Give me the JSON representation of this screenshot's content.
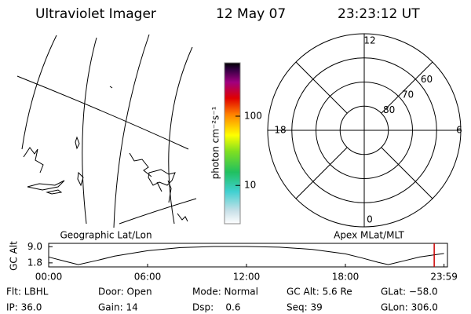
{
  "header": {
    "title": "Ultraviolet Imager",
    "date": "12 May 07",
    "time": "23:23:12 UT"
  },
  "chart_data": [
    {
      "type": "map",
      "title": "Geographic Lat/Lon"
    },
    {
      "type": "colorbar",
      "label": "photon cm⁻²s⁻¹",
      "ylim": [
        2.8,
        590
      ],
      "yticks": [
        10,
        100
      ],
      "log_scale": true
    },
    {
      "type": "polar",
      "title": "Apex MLat/MLT",
      "rlim": [
        90,
        50
      ],
      "rticks": [
        80,
        70,
        60
      ],
      "thetalim": [
        0,
        24
      ],
      "thetaticks": [
        12,
        18,
        6,
        0
      ]
    },
    {
      "type": "line",
      "ylabel": "GC Alt",
      "color": "#000000",
      "x": [
        0,
        1,
        1.8,
        3,
        4,
        6,
        8,
        10,
        12,
        14,
        16,
        18,
        19,
        20,
        20.6,
        21.5,
        22.5,
        23.98
      ],
      "values": [
        4.4,
        2.5,
        1.0,
        3.0,
        4.8,
        7.2,
        8.6,
        9.1,
        9.1,
        8.8,
        7.8,
        5.8,
        4.0,
        2.0,
        1.0,
        2.6,
        4.4,
        6.0
      ],
      "xlim": [
        0,
        24
      ],
      "ylim": [
        0,
        10.5
      ],
      "xticks": [
        {
          "value": 0,
          "label": "00:00"
        },
        {
          "value": 6,
          "label": "06:00"
        },
        {
          "value": 12,
          "label": "12:00"
        },
        {
          "value": 18,
          "label": "18:00"
        },
        {
          "value": 23.983,
          "label": "23:59"
        }
      ],
      "yticks": [
        {
          "value": 9,
          "label": "9.0"
        },
        {
          "value": 1.8,
          "label": "1.8"
        }
      ],
      "marker_x": 23.387,
      "marker_color": "#cc0000"
    }
  ],
  "footer": {
    "rows": [
      [
        "Flt: LBHL",
        "Door: Open",
        "Mode: Normal",
        "GC Alt: 5.6 Re",
        "GLat: −58.0"
      ],
      [
        "IP: 36.0",
        "Gain: 14",
        "Dsp:    0.6",
        "Seq: 39",
        "GLon: 306.0"
      ]
    ]
  }
}
